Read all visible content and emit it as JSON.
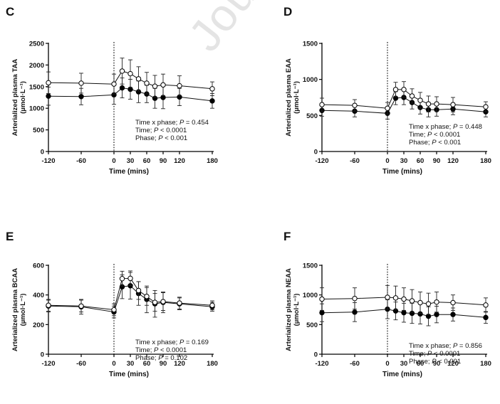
{
  "watermark": "Journal Pre-proof",
  "xlabel": "Time (mins)",
  "xticks": [
    -120,
    -60,
    0,
    30,
    60,
    90,
    120,
    180
  ],
  "xticklabels": [
    "-120",
    "-60",
    "0",
    "30",
    "60",
    "90",
    "120",
    "180"
  ],
  "chart_data": [
    {
      "type": "line",
      "panel": "C",
      "title": "C",
      "xlabel": "Time (mins)",
      "ylabel": "Arterialized plasma TAA",
      "yunit": "(µmol·L⁻¹)",
      "ylim": [
        0,
        2500
      ],
      "yticks": [
        0,
        500,
        1000,
        1500,
        2000,
        2500
      ],
      "x": [
        -120,
        -60,
        0,
        15,
        30,
        45,
        60,
        75,
        90,
        120,
        180
      ],
      "series": [
        {
          "name": "open",
          "marker": "open",
          "values": [
            1590,
            1580,
            1560,
            1860,
            1800,
            1680,
            1580,
            1510,
            1540,
            1520,
            1450
          ],
          "errors": [
            250,
            230,
            230,
            300,
            320,
            280,
            250,
            250,
            250,
            230,
            160
          ]
        },
        {
          "name": "filled",
          "marker": "filled",
          "values": [
            1280,
            1270,
            1310,
            1470,
            1440,
            1380,
            1330,
            1230,
            1250,
            1260,
            1170
          ],
          "errors": [
            210,
            190,
            220,
            230,
            230,
            250,
            200,
            230,
            260,
            200,
            170
          ]
        }
      ],
      "annotations": [
        {
          "label": "Time x phase; ",
          "p": "P",
          "value": " = 0.454"
        },
        {
          "label": "Time; ",
          "p": "P",
          "value": " < 0.0001"
        },
        {
          "label": "Phase; ",
          "p": "P",
          "value": " < 0.001"
        }
      ]
    },
    {
      "type": "line",
      "panel": "D",
      "title": "D",
      "xlabel": "Time (mins)",
      "ylabel": "Arterialized plasma EAA",
      "yunit": "(µmol·L⁻¹)",
      "ylim": [
        0,
        1500
      ],
      "yticks": [
        0,
        500,
        1000,
        1500
      ],
      "x": [
        -120,
        -60,
        0,
        15,
        30,
        45,
        60,
        75,
        90,
        120,
        180
      ],
      "series": [
        {
          "name": "open",
          "marker": "open",
          "values": [
            650,
            640,
            600,
            860,
            860,
            770,
            710,
            660,
            660,
            650,
            620
          ],
          "errors": [
            90,
            80,
            80,
            100,
            110,
            100,
            110,
            110,
            100,
            100,
            70
          ]
        },
        {
          "name": "filled",
          "marker": "filled",
          "values": [
            570,
            560,
            530,
            740,
            750,
            680,
            610,
            580,
            580,
            590,
            550
          ],
          "errors": [
            80,
            80,
            80,
            90,
            100,
            90,
            90,
            100,
            90,
            80,
            70
          ]
        }
      ],
      "annotations": [
        {
          "label": "Time x phase; ",
          "p": "P",
          "value": " = 0.448"
        },
        {
          "label": "Time; ",
          "p": "P",
          "value": " < 0.0001"
        },
        {
          "label": "Phase; ",
          "p": "P",
          "value": " < 0.001"
        }
      ]
    },
    {
      "type": "line",
      "panel": "E",
      "title": "E",
      "xlabel": "Time (mins)",
      "ylabel": "Arterialized plasma BCAA",
      "yunit": "(µmol·L⁻¹)",
      "ylim": [
        0,
        600
      ],
      "yticks": [
        0,
        200,
        400,
        600
      ],
      "x": [
        -120,
        -60,
        0,
        15,
        30,
        45,
        60,
        75,
        90,
        120,
        180
      ],
      "series": [
        {
          "name": "open",
          "marker": "open",
          "values": [
            330,
            325,
            300,
            510,
            512,
            430,
            390,
            350,
            355,
            345,
            330
          ],
          "errors": [
            40,
            40,
            40,
            50,
            50,
            60,
            60,
            60,
            60,
            40,
            30
          ]
        },
        {
          "name": "filled",
          "marker": "filled",
          "values": [
            325,
            320,
            285,
            455,
            462,
            410,
            370,
            340,
            350,
            340,
            320
          ],
          "errors": [
            40,
            50,
            40,
            80,
            90,
            80,
            90,
            90,
            70,
            40,
            30
          ]
        }
      ],
      "annotations": [
        {
          "label": "Time x phase; ",
          "p": "P",
          "value": " = 0.169"
        },
        {
          "label": "Time; ",
          "p": "P",
          "value": " < 0.0001"
        },
        {
          "label": "Phase; ",
          "p": "P",
          "value": " = 0.102"
        }
      ]
    },
    {
      "type": "line",
      "panel": "F",
      "title": "F",
      "xlabel": "Time (mins)",
      "ylabel": "Arterialized plasma NEAA",
      "yunit": "(µmol·L⁻¹)",
      "ylim": [
        0,
        1500
      ],
      "yticks": [
        0,
        500,
        1000,
        1500
      ],
      "x": [
        -120,
        -60,
        0,
        15,
        30,
        45,
        60,
        75,
        90,
        120,
        180
      ],
      "series": [
        {
          "name": "open",
          "marker": "open",
          "values": [
            930,
            940,
            960,
            950,
            930,
            900,
            870,
            850,
            880,
            870,
            830
          ],
          "errors": [
            190,
            180,
            200,
            200,
            190,
            190,
            180,
            180,
            170,
            130,
            120
          ]
        },
        {
          "name": "filled",
          "marker": "filled",
          "values": [
            700,
            710,
            760,
            730,
            700,
            690,
            680,
            640,
            670,
            670,
            620
          ],
          "errors": [
            150,
            160,
            160,
            150,
            160,
            170,
            170,
            160,
            140,
            110,
            100
          ]
        }
      ],
      "annotations": [
        {
          "label": "Time x phase; ",
          "p": "P",
          "value": " = 0.856"
        },
        {
          "label": "Time; ",
          "p": "P",
          "value": " < 0.0001"
        },
        {
          "label": "Phase; ",
          "p": "P",
          "value": " < 0.001"
        }
      ]
    }
  ]
}
